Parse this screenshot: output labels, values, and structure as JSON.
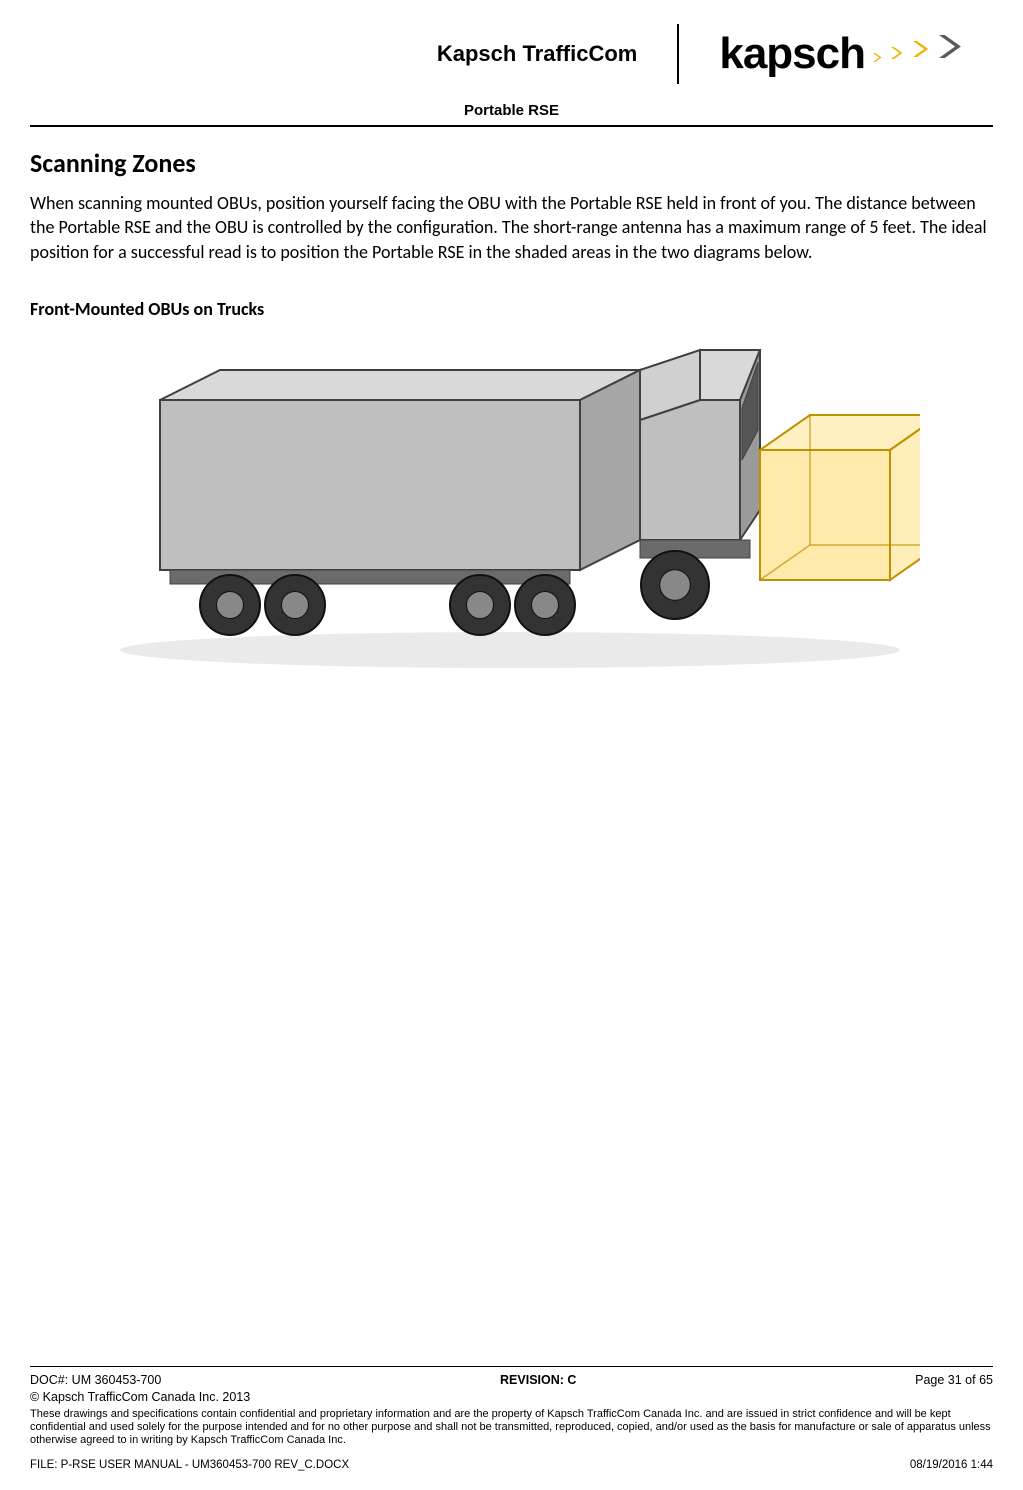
{
  "header": {
    "company": "Kapsch TrafficCom",
    "logo_text": "kapsch",
    "logo_arrow_colors": [
      "#f0b400",
      "#f0b400",
      "#f0b400",
      "#5a5a5a"
    ],
    "doc_title": "Portable RSE"
  },
  "content": {
    "heading": "Scanning Zones",
    "paragraph": "When scanning mounted OBUs, position yourself facing the OBU with the Portable RSE held in front of you. The distance between the Portable RSE and the OBU is controlled by the configuration. The short-range antenna has a maximum range of 5 feet. The ideal position for a successful read is to position the Portable RSE in the shaded areas in the two diagrams below.",
    "subheading": "Front-Mounted OBUs on Trucks"
  },
  "diagram": {
    "type": "infographic",
    "truck_body_color": "#bfbfbf",
    "truck_outline_color": "#404040",
    "truck_dark_color": "#6b6b6b",
    "wheel_color": "#333333",
    "wheel_hub_color": "#888888",
    "zone_fill": "#ffd966",
    "zone_stroke": "#bf9000",
    "background": "#ffffff"
  },
  "footer": {
    "doc_number": "DOC#: UM 360453-700",
    "revision": "REVISION: C",
    "page_label": "Page 31 of 65",
    "copyright": "© Kapsch TrafficCom Canada Inc. 2013",
    "confidential": "These drawings and specifications contain confidential and proprietary information and are the property of Kapsch TrafficCom Canada Inc. and are issued in strict confidence and will be kept confidential and used solely for the purpose intended and for no other purpose and shall not be transmitted, reproduced, copied, and/or used as the basis for manufacture or sale of apparatus unless otherwise agreed to in writing by Kapsch TrafficCom Canada Inc.",
    "file": "FILE: P-RSE USER MANUAL - UM360453-700 REV_C.DOCX",
    "timestamp": "08/19/2016 1:44"
  }
}
